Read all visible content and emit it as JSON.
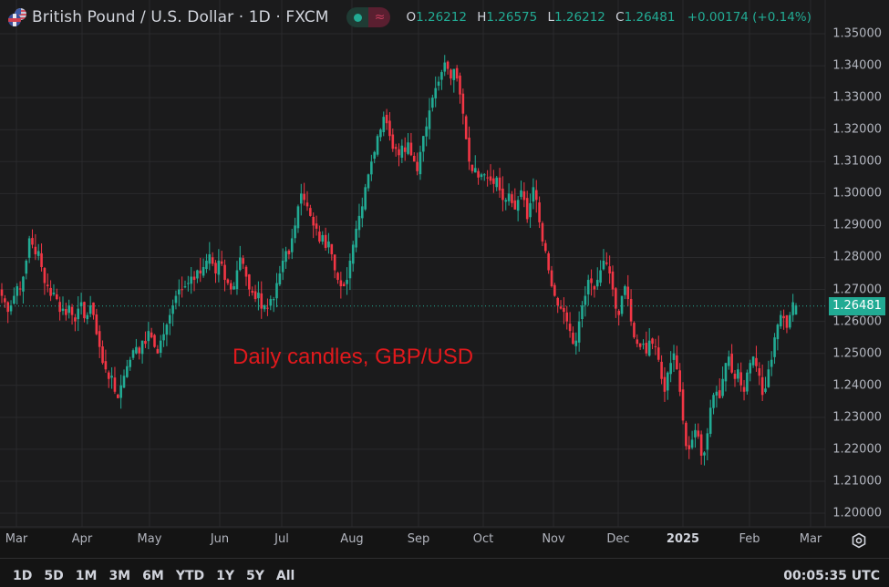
{
  "header": {
    "symbol_title": "British Pound / U.S. Dollar · 1D · FXCM",
    "flags": [
      "uk-flag-icon",
      "us-flag-icon"
    ],
    "ohlc": {
      "o_label": "O",
      "o": "1.26212",
      "h_label": "H",
      "h": "1.26575",
      "l_label": "L",
      "l": "1.26212",
      "c_label": "C",
      "c": "1.26481",
      "change": "+0.00174 (+0.14%)"
    }
  },
  "colors": {
    "up": "#22ab94",
    "down": "#f23645",
    "background": "#1b1b1c",
    "grid": "#2a2a2c",
    "annotation": "#e0191c",
    "price_tag": "#22ab94"
  },
  "annotation": "Daily candles, GBP/USD",
  "price_axis": {
    "labels": [
      "1.35000",
      "1.34000",
      "1.33000",
      "1.32000",
      "1.31000",
      "1.30000",
      "1.29000",
      "1.28000",
      "1.27000",
      "1.26000",
      "1.25000",
      "1.24000",
      "1.23000",
      "1.22000",
      "1.21000",
      "1.20000"
    ],
    "last_price": "1.26481"
  },
  "time_axis": {
    "labels": [
      "Mar",
      "Apr",
      "May",
      "Jun",
      "Jul",
      "Aug",
      "Sep",
      "Oct",
      "Nov",
      "Dec",
      "2025",
      "Feb",
      "Mar"
    ]
  },
  "bottom_bar": {
    "ranges": [
      "1D",
      "5D",
      "1M",
      "3M",
      "6M",
      "YTD",
      "1Y",
      "5Y",
      "All"
    ],
    "clock": "00:05:35 UTC"
  },
  "chart_data": {
    "type": "candlestick",
    "title": "British Pound / U.S. Dollar · 1D · FXCM",
    "annotation": "Daily candles, GBP/USD",
    "xlabel": "",
    "ylabel": "",
    "ylim": [
      1.2,
      1.35
    ],
    "x_tick_labels": [
      "Mar",
      "Apr",
      "May",
      "Jun",
      "Jul",
      "Aug",
      "Sep",
      "Oct",
      "Nov",
      "Dec",
      "2025",
      "Feb",
      "Mar"
    ],
    "y_tick_labels": [
      "1.20000",
      "1.21000",
      "1.22000",
      "1.23000",
      "1.24000",
      "1.25000",
      "1.26000",
      "1.27000",
      "1.28000",
      "1.29000",
      "1.30000",
      "1.31000",
      "1.32000",
      "1.33000",
      "1.34000",
      "1.35000"
    ],
    "grid": true,
    "last": {
      "open": 1.26212,
      "high": 1.26575,
      "low": 1.26212,
      "close": 1.26481,
      "change": 0.00174,
      "change_pct": 0.14
    },
    "approx_monthly_closes": [
      {
        "month": "Feb 2024",
        "close": 1.263
      },
      {
        "month": "Mar 2024",
        "close": 1.262
      },
      {
        "month": "Apr 2024",
        "close": 1.249
      },
      {
        "month": "May 2024",
        "close": 1.274
      },
      {
        "month": "Jun 2024",
        "close": 1.265
      },
      {
        "month": "Jul 2024",
        "close": 1.285
      },
      {
        "month": "Aug 2024",
        "close": 1.313
      },
      {
        "month": "Sep 2024",
        "close": 1.337
      },
      {
        "month": "Oct 2024",
        "close": 1.289
      },
      {
        "month": "Nov 2024",
        "close": 1.273
      },
      {
        "month": "Dec 2024",
        "close": 1.252
      },
      {
        "month": "Jan 2025",
        "close": 1.241
      },
      {
        "month": "Feb 2025",
        "close": 1.265
      }
    ],
    "key_points": [
      {
        "label": "Mar 2024 high",
        "value": 1.289
      },
      {
        "label": "Apr 2024 low",
        "value": 1.23
      },
      {
        "label": "Sep 2024 high",
        "value": 1.343
      },
      {
        "label": "Jan 2025 low",
        "value": 1.21
      },
      {
        "label": "Last close",
        "value": 1.26481
      }
    ],
    "closes": [
      1.268,
      1.266,
      1.263,
      1.265,
      1.268,
      1.271,
      1.27,
      1.274,
      1.279,
      1.286,
      1.284,
      1.281,
      1.282,
      1.277,
      1.272,
      1.271,
      1.268,
      1.269,
      1.267,
      1.263,
      1.264,
      1.262,
      1.265,
      1.262,
      1.26,
      1.264,
      1.266,
      1.261,
      1.262,
      1.265,
      1.262,
      1.256,
      1.252,
      1.247,
      1.245,
      1.242,
      1.243,
      1.238,
      1.236,
      1.24,
      1.243,
      1.246,
      1.248,
      1.251,
      1.252,
      1.25,
      1.254,
      1.253,
      1.257,
      1.255,
      1.252,
      1.25,
      1.254,
      1.256,
      1.259,
      1.262,
      1.265,
      1.268,
      1.27,
      1.27,
      1.271,
      1.272,
      1.274,
      1.273,
      1.276,
      1.275,
      1.277,
      1.279,
      1.281,
      1.278,
      1.275,
      1.279,
      1.278,
      1.273,
      1.272,
      1.27,
      1.271,
      1.276,
      1.28,
      1.278,
      1.274,
      1.27,
      1.269,
      1.267,
      1.269,
      1.264,
      1.265,
      1.264,
      1.267,
      1.267,
      1.272,
      1.275,
      1.279,
      1.282,
      1.281,
      1.286,
      1.29,
      1.296,
      1.3,
      1.298,
      1.296,
      1.293,
      1.29,
      1.289,
      1.285,
      1.287,
      1.283,
      1.285,
      1.281,
      1.276,
      1.273,
      1.271,
      1.271,
      1.273,
      1.279,
      1.284,
      1.289,
      1.293,
      1.296,
      1.302,
      1.306,
      1.31,
      1.313,
      1.318,
      1.32,
      1.324,
      1.322,
      1.318,
      1.314,
      1.314,
      1.312,
      1.315,
      1.313,
      1.316,
      1.312,
      1.31,
      1.307,
      1.313,
      1.318,
      1.321,
      1.326,
      1.33,
      1.333,
      1.335,
      1.338,
      1.341,
      1.339,
      1.336,
      1.339,
      1.336,
      1.331,
      1.325,
      1.317,
      1.31,
      1.307,
      1.308,
      1.305,
      1.306,
      1.306,
      1.305,
      1.304,
      1.303,
      1.305,
      1.301,
      1.298,
      1.298,
      1.3,
      1.297,
      1.295,
      1.298,
      1.301,
      1.298,
      1.292,
      1.297,
      1.302,
      1.298,
      1.291,
      1.285,
      1.282,
      1.276,
      1.271,
      1.268,
      1.265,
      1.264,
      1.263,
      1.26,
      1.257,
      1.253,
      1.254,
      1.26,
      1.265,
      1.268,
      1.273,
      1.272,
      1.27,
      1.273,
      1.276,
      1.279,
      1.278,
      1.275,
      1.27,
      1.264,
      1.262,
      1.268,
      1.271,
      1.267,
      1.26,
      1.255,
      1.253,
      1.252,
      1.253,
      1.25,
      1.254,
      1.253,
      1.252,
      1.248,
      1.242,
      1.238,
      1.244,
      1.247,
      1.25,
      1.245,
      1.238,
      1.229,
      1.221,
      1.22,
      1.223,
      1.226,
      1.224,
      1.218,
      1.219,
      1.225,
      1.233,
      1.237,
      1.238,
      1.236,
      1.242,
      1.247,
      1.249,
      1.244,
      1.242,
      1.245,
      1.24,
      1.238,
      1.244,
      1.247,
      1.249,
      1.246,
      1.243,
      1.237,
      1.239,
      1.245,
      1.248,
      1.255,
      1.259,
      1.262,
      1.261,
      1.258,
      1.262,
      1.266,
      1.265
    ]
  }
}
